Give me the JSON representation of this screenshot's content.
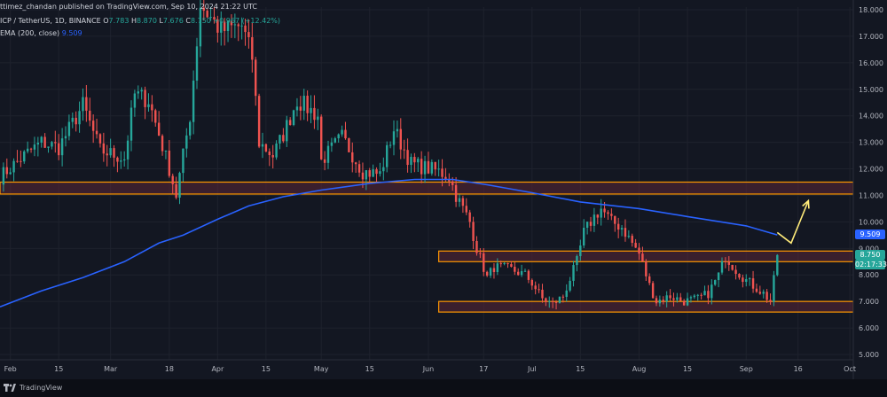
{
  "header": {
    "publish_line": "ttimez_chandan published on TradingView.com, Sep 10, 2024 21:22 UTC",
    "symbol": "ICP / TetherUS, 1D, BINANCE",
    "ohlc": [
      {
        "k": "O",
        "v": "7.783"
      },
      {
        "k": "H",
        "v": "8.870"
      },
      {
        "k": "L",
        "v": "7.676"
      },
      {
        "k": "C",
        "v": "8.750"
      },
      {
        "k": "",
        "v": "+0.967 (+12.42%)"
      }
    ],
    "ema_label": "EMA (200, close)",
    "ema_value": "9.509"
  },
  "price_tags": {
    "ema": "9.509",
    "last": "8.750",
    "countdown": "02:17:33"
  },
  "colors": {
    "background": "#131722",
    "up": "#26a69a",
    "down": "#ef5350",
    "ema": "#2962ff",
    "zone_border": "#ff9800",
    "zone_fill": "#5b2636",
    "arrow": "#ffeb7a"
  },
  "footer": {
    "brand": "TradingView",
    "logo_icon": "tradingview-logo-icon"
  },
  "chart_data": {
    "type": "candlestick",
    "symbol": "ICP / TetherUS",
    "interval": "1D",
    "exchange": "BINANCE",
    "y_axis": {
      "side": "right",
      "ylim": [
        4.8,
        18.1
      ],
      "ticks": [
        "5.000",
        "6.000",
        "7.000",
        "8.000",
        "9.000",
        "10.000",
        "11.000",
        "12.000",
        "13.000",
        "14.000",
        "15.000",
        "16.000",
        "17.000",
        "18.000"
      ]
    },
    "x_axis": {
      "start": "2024-01-29",
      "end": "2024-10-02",
      "ticks": [
        {
          "label": "Feb",
          "date": "2024-02-01"
        },
        {
          "label": "15",
          "date": "2024-02-15"
        },
        {
          "label": "Mar",
          "date": "2024-03-01"
        },
        {
          "label": "18",
          "date": "2024-03-18"
        },
        {
          "label": "Apr",
          "date": "2024-04-01"
        },
        {
          "label": "15",
          "date": "2024-04-15"
        },
        {
          "label": "May",
          "date": "2024-05-01"
        },
        {
          "label": "15",
          "date": "2024-05-15"
        },
        {
          "label": "Jun",
          "date": "2024-06-01"
        },
        {
          "label": "17",
          "date": "2024-06-17"
        },
        {
          "label": "Jul",
          "date": "2024-07-01"
        },
        {
          "label": "15",
          "date": "2024-07-15"
        },
        {
          "label": "Aug",
          "date": "2024-08-01"
        },
        {
          "label": "15",
          "date": "2024-08-15"
        },
        {
          "label": "Sep",
          "date": "2024-09-01"
        },
        {
          "label": "16",
          "date": "2024-09-16"
        },
        {
          "label": "Oct",
          "date": "2024-10-01"
        }
      ]
    },
    "close_anchors": [
      [
        "2024-01-29",
        11.7
      ],
      [
        "2024-02-05",
        12.5
      ],
      [
        "2024-02-10",
        13.0
      ],
      [
        "2024-02-15",
        12.8
      ],
      [
        "2024-02-22",
        14.4
      ],
      [
        "2024-02-27",
        12.7
      ],
      [
        "2024-03-05",
        12.4
      ],
      [
        "2024-03-08",
        14.8
      ],
      [
        "2024-03-12",
        14.6
      ],
      [
        "2024-03-18",
        12.0
      ],
      [
        "2024-03-20",
        11.0
      ],
      [
        "2024-03-24",
        14.0
      ],
      [
        "2024-03-27",
        18.2
      ],
      [
        "2024-04-02",
        17.2
      ],
      [
        "2024-04-08",
        17.4
      ],
      [
        "2024-04-11",
        16.2
      ],
      [
        "2024-04-13",
        13.0
      ],
      [
        "2024-04-17",
        12.5
      ],
      [
        "2024-04-20",
        13.3
      ],
      [
        "2024-04-24",
        14.6
      ],
      [
        "2024-04-30",
        14.0
      ],
      [
        "2024-05-01",
        12.3
      ],
      [
        "2024-05-07",
        13.2
      ],
      [
        "2024-05-13",
        11.9
      ],
      [
        "2024-05-18",
        11.8
      ],
      [
        "2024-05-22",
        13.5
      ],
      [
        "2024-05-27",
        12.2
      ],
      [
        "2024-06-04",
        11.9
      ],
      [
        "2024-06-07",
        11.7
      ],
      [
        "2024-06-09",
        11.0
      ],
      [
        "2024-06-13",
        10.0
      ],
      [
        "2024-06-15",
        9.0
      ],
      [
        "2024-06-18",
        7.9
      ],
      [
        "2024-06-20",
        8.3
      ],
      [
        "2024-06-25",
        8.2
      ],
      [
        "2024-06-29",
        8.0
      ],
      [
        "2024-07-01",
        7.7
      ],
      [
        "2024-07-04",
        7.1
      ],
      [
        "2024-07-07",
        6.9
      ],
      [
        "2024-07-10",
        7.2
      ],
      [
        "2024-07-14",
        8.5
      ],
      [
        "2024-07-16",
        9.6
      ],
      [
        "2024-07-19",
        10.2
      ],
      [
        "2024-07-21",
        10.5
      ],
      [
        "2024-07-24",
        10.0
      ],
      [
        "2024-07-27",
        9.8
      ],
      [
        "2024-07-30",
        9.2
      ],
      [
        "2024-08-01",
        8.8
      ],
      [
        "2024-08-04",
        7.6
      ],
      [
        "2024-08-06",
        7.0
      ],
      [
        "2024-08-10",
        7.2
      ],
      [
        "2024-08-14",
        7.0
      ],
      [
        "2024-08-18",
        7.1
      ],
      [
        "2024-08-21",
        7.3
      ],
      [
        "2024-08-24",
        8.0
      ],
      [
        "2024-08-26",
        8.7
      ],
      [
        "2024-08-29",
        8.2
      ],
      [
        "2024-09-01",
        7.8
      ],
      [
        "2024-09-04",
        7.5
      ],
      [
        "2024-09-06",
        7.3
      ],
      [
        "2024-09-08",
        7.0
      ],
      [
        "2024-09-09",
        7.8
      ],
      [
        "2024-09-10",
        8.75
      ]
    ],
    "ema_200": {
      "label": "EMA (200, close)",
      "points": [
        [
          "2024-01-29",
          6.8
        ],
        [
          "2024-02-10",
          7.4
        ],
        [
          "2024-02-22",
          7.9
        ],
        [
          "2024-03-05",
          8.5
        ],
        [
          "2024-03-15",
          9.2
        ],
        [
          "2024-03-22",
          9.5
        ],
        [
          "2024-04-01",
          10.1
        ],
        [
          "2024-04-10",
          10.6
        ],
        [
          "2024-04-20",
          10.95
        ],
        [
          "2024-05-01",
          11.2
        ],
        [
          "2024-05-15",
          11.45
        ],
        [
          "2024-05-28",
          11.6
        ],
        [
          "2024-06-08",
          11.6
        ],
        [
          "2024-06-18",
          11.4
        ],
        [
          "2024-07-01",
          11.1
        ],
        [
          "2024-07-15",
          10.75
        ],
        [
          "2024-08-01",
          10.5
        ],
        [
          "2024-08-15",
          10.2
        ],
        [
          "2024-09-01",
          9.85
        ],
        [
          "2024-09-10",
          9.509
        ]
      ]
    },
    "zones": [
      {
        "start": "2024-01-29",
        "end": "2024-10-02",
        "low": 11.05,
        "high": 11.5
      },
      {
        "start": "2024-06-04",
        "end": "2024-10-02",
        "low": 8.5,
        "high": 8.9
      },
      {
        "start": "2024-06-04",
        "end": "2024-10-02",
        "low": 6.6,
        "high": 7.0
      }
    ],
    "projection_arrow": [
      [
        "2024-09-10",
        9.6
      ],
      [
        "2024-09-12",
        9.4
      ],
      [
        "2024-09-14",
        9.2
      ],
      [
        "2024-09-19",
        10.8
      ]
    ],
    "grid": true,
    "legend": "top-left"
  }
}
